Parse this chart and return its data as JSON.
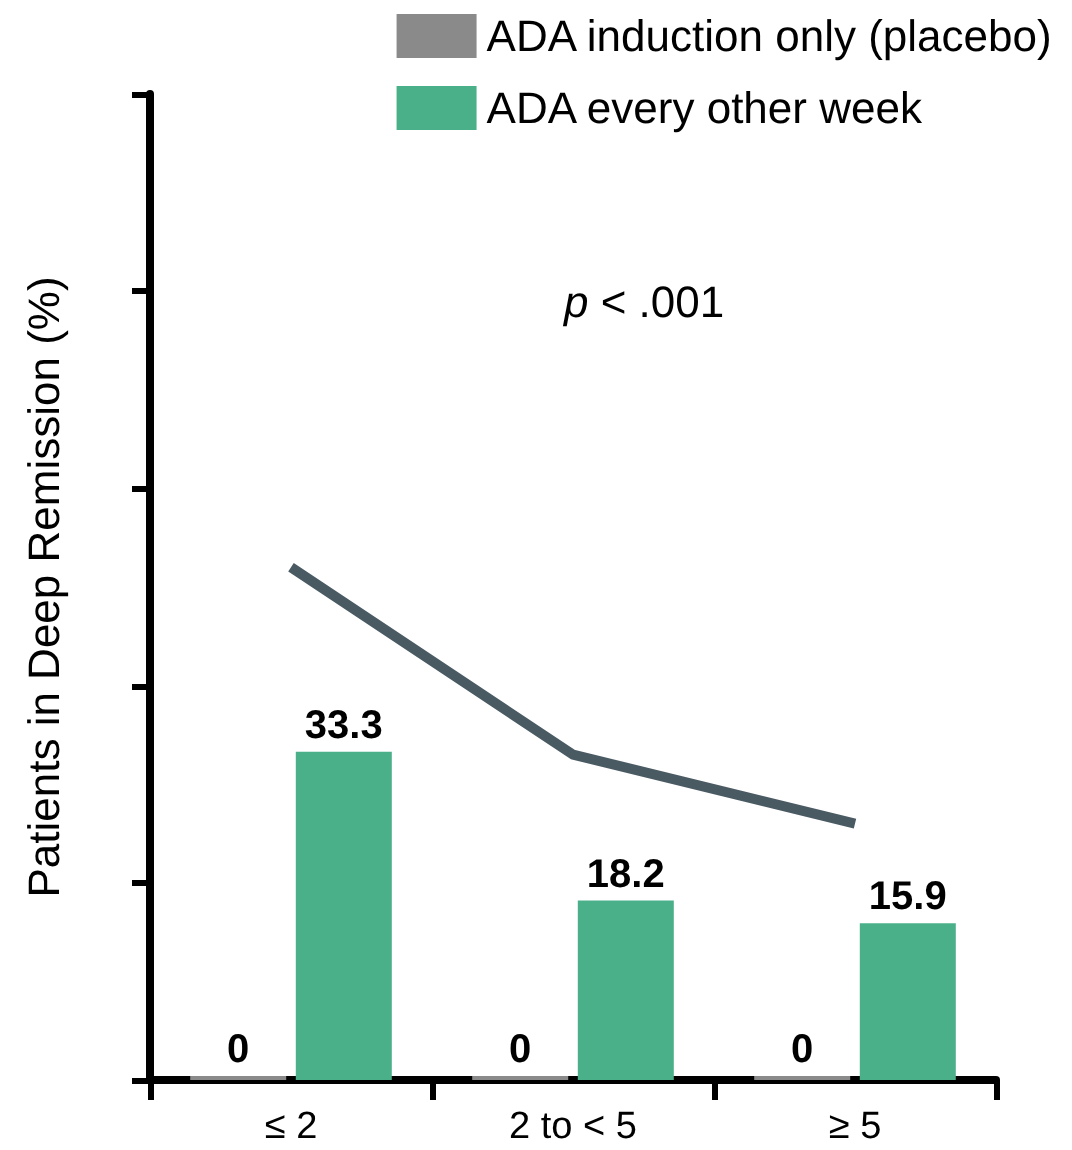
{
  "chart_data": {
    "type": "bar",
    "categories": [
      "≤ 2",
      "2 to < 5",
      "≥ 5"
    ],
    "ylabel": "Patients in Deep Remission (%)",
    "ylim": [
      0,
      100
    ],
    "yticks": [
      {
        "value": 0,
        "label": null
      },
      {
        "value": 20,
        "label": null
      },
      {
        "value": 40,
        "label": null
      },
      {
        "value": 60,
        "label": null
      },
      {
        "value": 80,
        "label": null
      },
      {
        "value": 100,
        "label": null
      }
    ],
    "series": [
      {
        "name": "ADA induction only (placebo)",
        "color": "#8a8a8a",
        "values": [
          0,
          0,
          0
        ]
      },
      {
        "name": "ADA every other week",
        "color": "#4ab08a",
        "values": [
          33.3,
          18.2,
          15.9
        ]
      },
      {
        "type": "line",
        "color": "#4a5a63",
        "values": [
          52,
          33,
          26
        ],
        "marker": "none",
        "line_style": "solid",
        "data_labels": false
      }
    ],
    "data_labels": true,
    "annotations": [
      "p < .001"
    ],
    "legend": "top right",
    "grid": false
  }
}
